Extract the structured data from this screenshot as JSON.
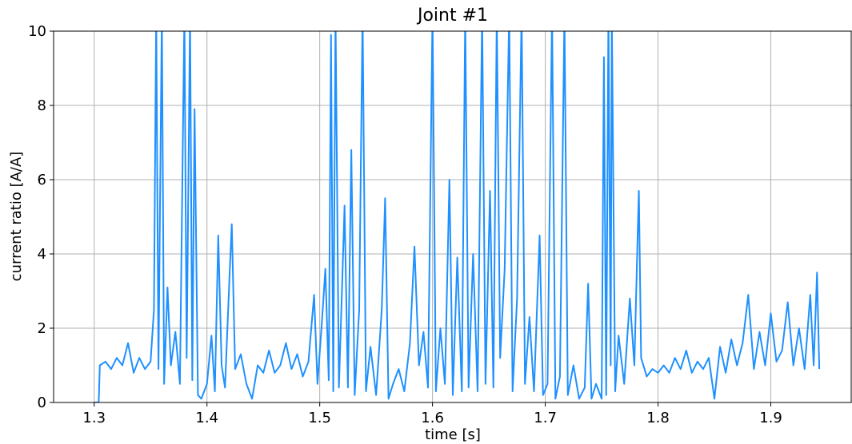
{
  "chart_data": {
    "type": "line",
    "title": "Joint #1",
    "x_label": "time [s]",
    "y_label": "current ratio [A/A]",
    "color": "#1e90ff",
    "grid": true,
    "xlim": [
      1.264,
      1.972
    ],
    "ylim": [
      0,
      10
    ],
    "xticks": [
      1.3,
      1.4,
      1.5,
      1.6,
      1.7,
      1.8,
      1.9
    ],
    "yticks": [
      0,
      2,
      4,
      6,
      8,
      10
    ],
    "x": [
      1.3,
      1.304,
      1.305,
      1.31,
      1.315,
      1.32,
      1.325,
      1.33,
      1.335,
      1.34,
      1.345,
      1.35,
      1.353,
      1.355,
      1.357,
      1.36,
      1.362,
      1.365,
      1.368,
      1.372,
      1.376,
      1.38,
      1.382,
      1.385,
      1.387,
      1.389,
      1.392,
      1.395,
      1.4,
      1.404,
      1.407,
      1.41,
      1.413,
      1.416,
      1.42,
      1.422,
      1.425,
      1.43,
      1.435,
      1.44,
      1.445,
      1.45,
      1.455,
      1.46,
      1.465,
      1.47,
      1.475,
      1.48,
      1.485,
      1.49,
      1.495,
      1.498,
      1.502,
      1.505,
      1.508,
      1.51,
      1.512,
      1.514,
      1.517,
      1.52,
      1.522,
      1.525,
      1.528,
      1.531,
      1.535,
      1.538,
      1.541,
      1.545,
      1.55,
      1.555,
      1.558,
      1.561,
      1.565,
      1.57,
      1.575,
      1.58,
      1.584,
      1.588,
      1.592,
      1.596,
      1.6,
      1.603,
      1.607,
      1.611,
      1.615,
      1.618,
      1.622,
      1.626,
      1.629,
      1.632,
      1.636,
      1.64,
      1.644,
      1.647,
      1.651,
      1.654,
      1.657,
      1.66,
      1.664,
      1.668,
      1.671,
      1.675,
      1.679,
      1.682,
      1.686,
      1.69,
      1.695,
      1.698,
      1.702,
      1.706,
      1.709,
      1.713,
      1.717,
      1.72,
      1.725,
      1.73,
      1.735,
      1.738,
      1.741,
      1.745,
      1.75,
      1.752,
      1.754,
      1.756,
      1.758,
      1.759,
      1.762,
      1.765,
      1.77,
      1.775,
      1.779,
      1.782,
      1.783,
      1.785,
      1.79,
      1.795,
      1.8,
      1.805,
      1.81,
      1.815,
      1.82,
      1.825,
      1.83,
      1.835,
      1.84,
      1.845,
      1.85,
      1.855,
      1.86,
      1.865,
      1.87,
      1.875,
      1.88,
      1.885,
      1.89,
      1.895,
      1.9,
      1.905,
      1.91,
      1.915,
      1.92,
      1.925,
      1.93,
      1.935,
      1.938,
      1.941,
      1.943
    ],
    "values": [
      0,
      0,
      1.0,
      1.1,
      0.9,
      1.2,
      1.0,
      1.6,
      0.8,
      1.2,
      0.9,
      1.1,
      2.5,
      10.5,
      0.9,
      10.5,
      0.5,
      3.1,
      1.0,
      1.9,
      0.5,
      10.5,
      1.2,
      10.5,
      0.6,
      7.9,
      0.2,
      0.1,
      0.5,
      1.8,
      0.3,
      4.5,
      1.0,
      0.4,
      3.4,
      4.8,
      0.9,
      1.3,
      0.5,
      0.1,
      1.0,
      0.8,
      1.4,
      0.8,
      1.0,
      1.6,
      0.9,
      1.3,
      0.7,
      1.1,
      2.9,
      0.5,
      2.2,
      3.6,
      0.6,
      9.9,
      0.3,
      10.5,
      0.4,
      3.3,
      5.3,
      0.4,
      6.8,
      0.2,
      2.5,
      10.5,
      0.3,
      1.5,
      0.2,
      2.5,
      5.5,
      0.1,
      0.5,
      0.9,
      0.3,
      1.6,
      4.2,
      1.0,
      1.9,
      0.4,
      10.5,
      0.3,
      2.0,
      0.5,
      6.0,
      0.2,
      3.9,
      0.3,
      10.5,
      0.4,
      4.0,
      0.3,
      10.5,
      0.5,
      5.7,
      0.4,
      10.5,
      1.2,
      3.6,
      10.5,
      0.3,
      2.8,
      10.5,
      0.5,
      2.3,
      0.3,
      4.5,
      0.2,
      0.5,
      10.5,
      0.1,
      0.7,
      10.5,
      0.2,
      1.0,
      0.1,
      0.4,
      3.2,
      0.1,
      0.5,
      0.1,
      9.3,
      0.2,
      10.5,
      1.0,
      10.5,
      0.3,
      1.8,
      0.5,
      2.8,
      1.0,
      4.6,
      5.7,
      1.2,
      0.7,
      0.9,
      0.8,
      1.0,
      0.8,
      1.2,
      0.9,
      1.4,
      0.8,
      1.1,
      0.9,
      1.2,
      0.1,
      1.5,
      0.8,
      1.7,
      1.0,
      1.6,
      2.9,
      0.9,
      1.9,
      1.0,
      2.4,
      1.1,
      1.4,
      2.7,
      1.0,
      2.0,
      0.9,
      2.9,
      1.0,
      3.5,
      0.9
    ]
  }
}
